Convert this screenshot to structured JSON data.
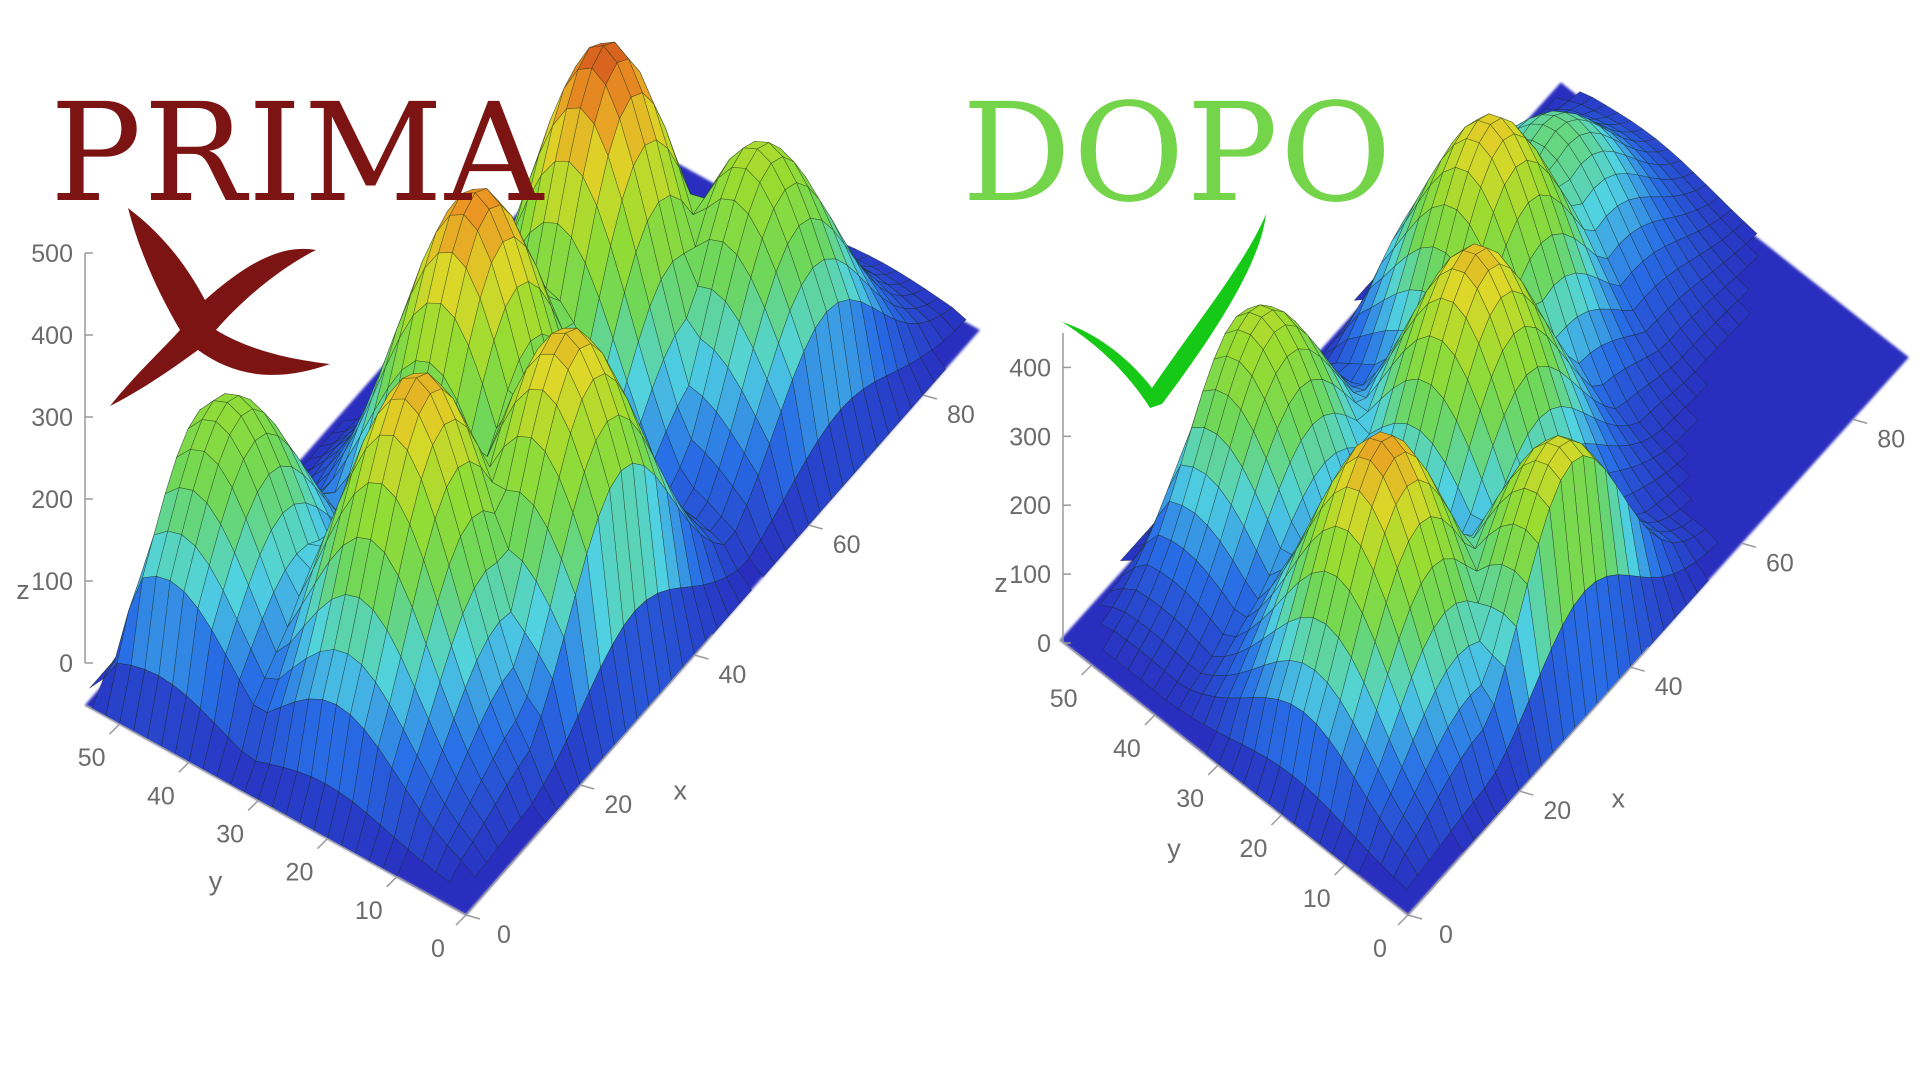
{
  "headings": {
    "before": "PRIMA",
    "after": "DOPO"
  },
  "marks": {
    "before": "cross-icon",
    "after": "check-icon"
  },
  "colors": {
    "before": "#7d1414",
    "after": "#74d44a",
    "check": "#17c917",
    "floor": "#2a2fbf"
  },
  "chart_data": [
    {
      "type": "surface",
      "title": "",
      "xlabel": "x",
      "ylabel": "y",
      "zlabel": "z",
      "x_ticks": [
        "0",
        "20",
        "40",
        "60",
        "80"
      ],
      "y_ticks": [
        "0",
        "10",
        "20",
        "30",
        "40",
        "50"
      ],
      "z_ticks": [
        "0",
        "100",
        "200",
        "300",
        "400",
        "500"
      ],
      "xlim": [
        0,
        90
      ],
      "ylim": [
        0,
        55
      ],
      "zlim": [
        0,
        500
      ],
      "peaks": [
        {
          "x": 18,
          "y": 22,
          "z": 410
        },
        {
          "x": 38,
          "y": 30,
          "z": 440
        },
        {
          "x": 58,
          "y": 28,
          "z": 470
        },
        {
          "x": 32,
          "y": 12,
          "z": 400
        },
        {
          "x": 68,
          "y": 14,
          "z": 330
        },
        {
          "x": 14,
          "y": 46,
          "z": 300
        }
      ]
    },
    {
      "type": "surface",
      "title": "",
      "xlabel": "x",
      "ylabel": "y",
      "zlabel": "z",
      "x_ticks": [
        "0",
        "20",
        "40",
        "60",
        "80"
      ],
      "y_ticks": [
        "0",
        "10",
        "20",
        "30",
        "40",
        "50"
      ],
      "z_ticks": [
        "0",
        "100",
        "200",
        "300",
        "400"
      ],
      "xlim": [
        0,
        90
      ],
      "ylim": [
        0,
        55
      ],
      "zlim": [
        0,
        450
      ],
      "peaks": [
        {
          "x": 18,
          "y": 20,
          "z": 380
        },
        {
          "x": 34,
          "y": 6,
          "z": 330
        },
        {
          "x": 44,
          "y": 28,
          "z": 360
        },
        {
          "x": 58,
          "y": 38,
          "z": 350
        },
        {
          "x": 72,
          "y": 40,
          "z": 200
        },
        {
          "x": 26,
          "y": 46,
          "z": 300
        }
      ]
    }
  ]
}
